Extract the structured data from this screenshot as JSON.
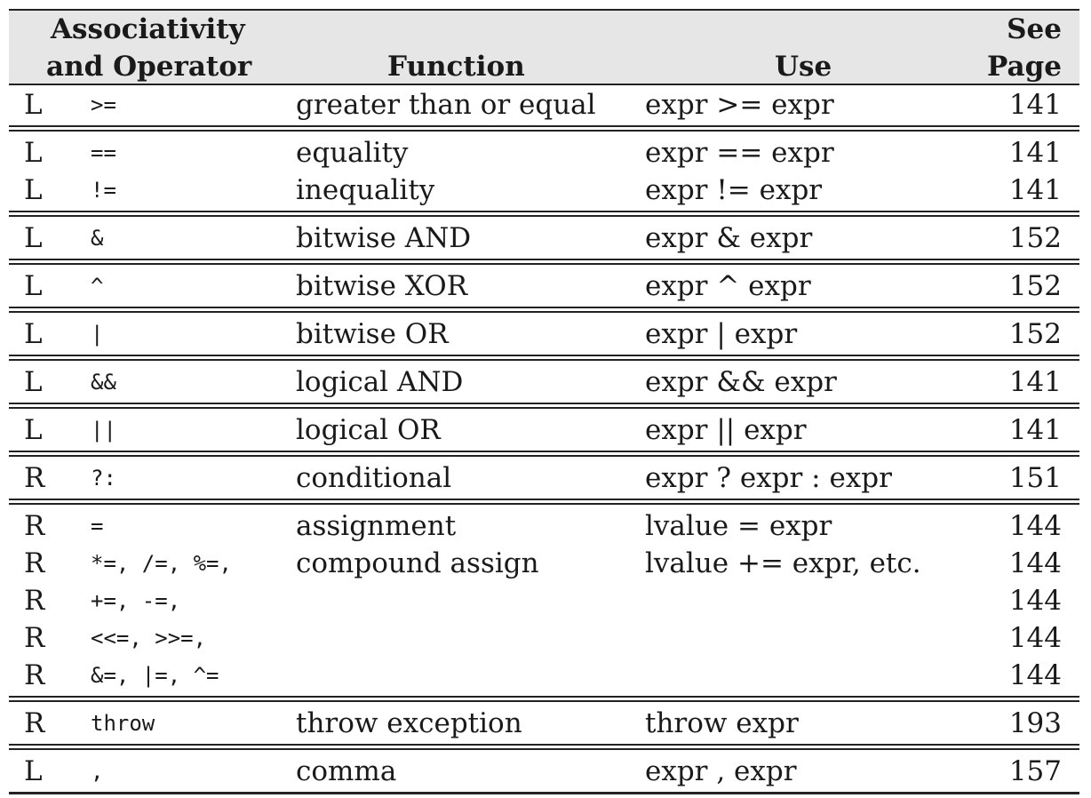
{
  "header": {
    "assoc_line1": "Associativity",
    "assoc_line2": "and Operator",
    "function": "Function",
    "use": "Use",
    "page_line1": "See",
    "page_line2": "Page"
  },
  "groups": [
    {
      "rows": [
        {
          "assoc": "L",
          "op": ">=",
          "fn": "greater than or equal",
          "use": "expr >= expr",
          "page": "141"
        }
      ]
    },
    {
      "rows": [
        {
          "assoc": "L",
          "op": "==",
          "fn": "equality",
          "use": "expr == expr",
          "page": "141"
        },
        {
          "assoc": "L",
          "op": "!=",
          "fn": "inequality",
          "use": "expr != expr",
          "page": "141"
        }
      ]
    },
    {
      "rows": [
        {
          "assoc": "L",
          "op": "&",
          "fn": "bitwise AND",
          "use": "expr & expr",
          "page": "152"
        }
      ]
    },
    {
      "rows": [
        {
          "assoc": "L",
          "op": "^",
          "fn": "bitwise XOR",
          "use": "expr ^ expr",
          "page": "152"
        }
      ]
    },
    {
      "rows": [
        {
          "assoc": "L",
          "op": "|",
          "fn": "bitwise OR",
          "use": "expr | expr",
          "page": "152"
        }
      ]
    },
    {
      "rows": [
        {
          "assoc": "L",
          "op": "&&",
          "fn": "logical AND",
          "use": "expr && expr",
          "page": "141"
        }
      ]
    },
    {
      "rows": [
        {
          "assoc": "L",
          "op": "||",
          "fn": "logical OR",
          "use": "expr || expr",
          "page": "141"
        }
      ]
    },
    {
      "rows": [
        {
          "assoc": "R",
          "op": "?:",
          "fn": "conditional",
          "use": "expr ? expr : expr",
          "page": "151"
        }
      ]
    },
    {
      "rows": [
        {
          "assoc": "R",
          "op": "=",
          "fn": "assignment",
          "use": "lvalue = expr",
          "page": "144"
        },
        {
          "assoc": "R",
          "op": "*=, /=, %=,",
          "fn": "compound assign",
          "use": "lvalue += expr, etc.",
          "page": "144"
        },
        {
          "assoc": "R",
          "op": "+=, -=,",
          "fn": "",
          "use": "",
          "page": "144"
        },
        {
          "assoc": "R",
          "op": "<<=, >>=,",
          "fn": "",
          "use": "",
          "page": "144"
        },
        {
          "assoc": "R",
          "op": "&=, |=, ^=",
          "fn": "",
          "use": "",
          "page": "144"
        }
      ]
    },
    {
      "rows": [
        {
          "assoc": "R",
          "op": "throw",
          "fn": "throw exception",
          "use": "throw expr",
          "page": "193"
        }
      ]
    },
    {
      "rows": [
        {
          "assoc": "L",
          "op": ",",
          "fn": "comma",
          "use": "expr , expr",
          "page": "157"
        }
      ]
    }
  ]
}
